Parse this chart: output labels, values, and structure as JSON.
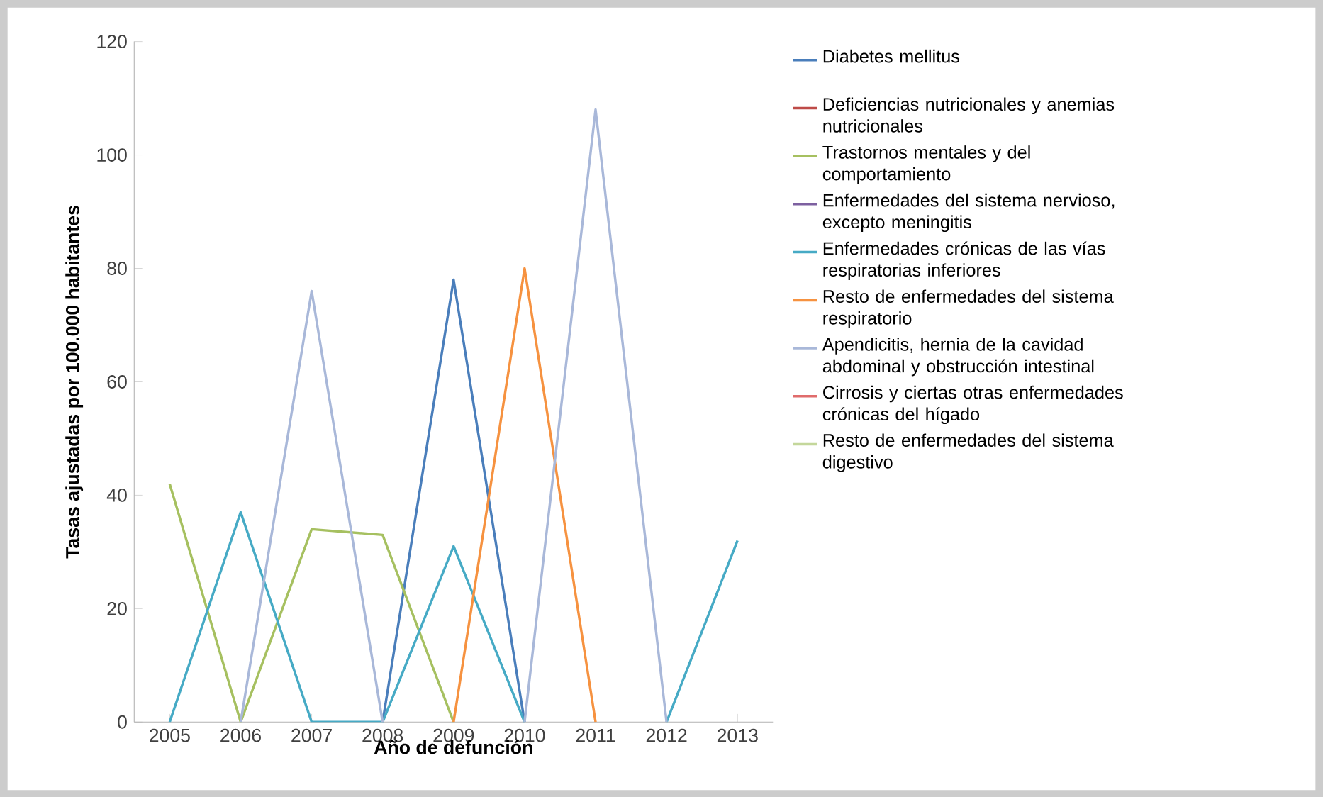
{
  "chart_data": {
    "type": "line",
    "xlabel": "Año de defunción",
    "ylabel": "Tasas ajustadas por 100.000 habitantes",
    "categories": [
      "2005",
      "2006",
      "2007",
      "2008",
      "2009",
      "2010",
      "2011",
      "2012",
      "2013"
    ],
    "ylim": [
      0,
      120
    ],
    "yticks": [
      0,
      20,
      40,
      60,
      80,
      100,
      120
    ],
    "grid": false,
    "legend": "right",
    "series": [
      {
        "name": "Diabetes mellitus",
        "color": "#4a7ebb",
        "values": [
          null,
          null,
          null,
          0,
          78,
          0,
          null,
          null,
          null
        ]
      },
      {
        "name": "Deficiencias nutricionales y anemias nutricionales",
        "color": "#be4b48",
        "values": [
          null,
          null,
          null,
          null,
          null,
          null,
          null,
          null,
          null
        ]
      },
      {
        "name": "Trastornos mentales y del comportamiento",
        "color": "#a6c060",
        "values": [
          42,
          0,
          34,
          33,
          0,
          null,
          null,
          null,
          null
        ]
      },
      {
        "name": "Enfermedades del sistema nervioso, excepto meningitis",
        "color": "#7d60a0",
        "values": [
          null,
          null,
          null,
          null,
          null,
          null,
          null,
          null,
          null
        ]
      },
      {
        "name": "Enfermedades crónicas de las vías respiratorias inferiores",
        "color": "#46aac5",
        "values": [
          0,
          37,
          0,
          0,
          31,
          0,
          null,
          0,
          32
        ]
      },
      {
        "name": "Resto de enfermedades del sistema respiratorio",
        "color": "#f69240",
        "values": [
          null,
          null,
          null,
          null,
          0,
          80,
          0,
          null,
          null
        ]
      },
      {
        "name": "Apendicitis, hernia de la cavidad abdominal y obstrucción intestinal",
        "color": "#a9b8d9",
        "values": [
          null,
          0,
          76,
          0,
          null,
          0,
          108,
          0,
          null
        ]
      },
      {
        "name": "Cirrosis y ciertas otras enfermedades crónicas del hígado",
        "color": "#e06c6c",
        "values": [
          null,
          null,
          null,
          null,
          null,
          null,
          null,
          null,
          null
        ]
      },
      {
        "name": "Resto de enfermedades del sistema digestivo",
        "color": "#c4d79b",
        "values": [
          null,
          null,
          null,
          null,
          null,
          null,
          null,
          null,
          null
        ]
      }
    ]
  }
}
